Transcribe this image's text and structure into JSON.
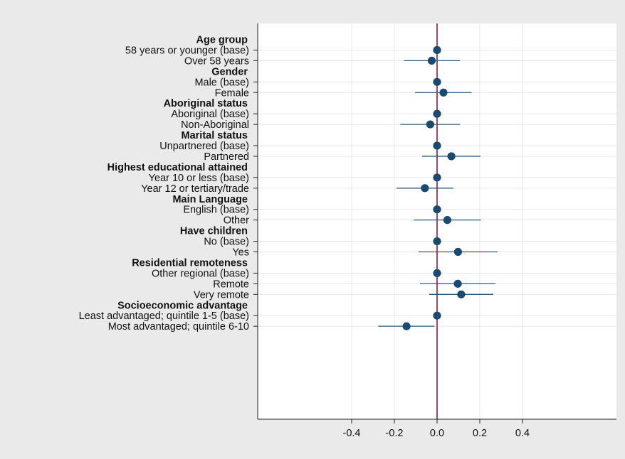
{
  "chart_data": {
    "type": "scatter",
    "subtype": "coefficient-plot",
    "title": "",
    "xlabel": "",
    "ylabel": "",
    "xlim": [
      -0.42,
      0.42
    ],
    "xticks": [
      -0.4,
      -0.2,
      0.0,
      0.2,
      0.4
    ],
    "xtick_labels": [
      "-0.4",
      "-0.2",
      "0.0",
      "0.2",
      "0.4"
    ],
    "reference_line_x": 0,
    "grid": true,
    "legend": "none",
    "colors": {
      "point": "#1a4a6e",
      "ci_line": "#2a5a80",
      "reference_line": "#8b1a3a",
      "plot_background": "#ffffff",
      "outer_background": "#eaeaea",
      "grid": "#e4e8ec"
    },
    "rows": [
      {
        "kind": "header",
        "label": "Age group"
      },
      {
        "kind": "term",
        "label": "58 years or younger (base)",
        "coef": 0.0,
        "ci_low": null,
        "ci_high": null
      },
      {
        "kind": "term",
        "label": "Over 58 years",
        "coef": -0.025,
        "ci_low": -0.155,
        "ci_high": 0.108
      },
      {
        "kind": "header",
        "label": "Gender"
      },
      {
        "kind": "term",
        "label": "Male (base)",
        "coef": 0.0,
        "ci_low": null,
        "ci_high": null
      },
      {
        "kind": "term",
        "label": "Female",
        "coef": 0.03,
        "ci_low": -0.103,
        "ci_high": 0.162
      },
      {
        "kind": "header",
        "label": "Aboriginal status"
      },
      {
        "kind": "term",
        "label": "Aboriginal (base)",
        "coef": 0.0,
        "ci_low": null,
        "ci_high": null
      },
      {
        "kind": "term",
        "label": "Non-Aboriginal",
        "coef": -0.032,
        "ci_low": -0.172,
        "ci_high": 0.108
      },
      {
        "kind": "header",
        "label": "Marital status"
      },
      {
        "kind": "term",
        "label": "Unpartnered (base)",
        "coef": 0.0,
        "ci_low": null,
        "ci_high": null
      },
      {
        "kind": "term",
        "label": "Partnered",
        "coef": 0.067,
        "ci_low": -0.07,
        "ci_high": 0.203
      },
      {
        "kind": "header",
        "label": "Highest educational attained"
      },
      {
        "kind": "term",
        "label": "Year 10 or less (base)",
        "coef": 0.0,
        "ci_low": null,
        "ci_high": null
      },
      {
        "kind": "term",
        "label": "Year 12 or tertiary/trade",
        "coef": -0.057,
        "ci_low": -0.19,
        "ci_high": 0.077
      },
      {
        "kind": "header",
        "label": "Main Language"
      },
      {
        "kind": "term",
        "label": "English (base)",
        "coef": 0.0,
        "ci_low": null,
        "ci_high": null
      },
      {
        "kind": "term",
        "label": "Other",
        "coef": 0.048,
        "ci_low": -0.11,
        "ci_high": 0.205
      },
      {
        "kind": "header",
        "label": "Have children"
      },
      {
        "kind": "term",
        "label": "No (base)",
        "coef": 0.0,
        "ci_low": null,
        "ci_high": null
      },
      {
        "kind": "term",
        "label": "Yes",
        "coef": 0.098,
        "ci_low": -0.087,
        "ci_high": 0.283
      },
      {
        "kind": "header",
        "label": "Residential remoteness"
      },
      {
        "kind": "term",
        "label": "Other regional (base)",
        "coef": 0.0,
        "ci_low": null,
        "ci_high": null
      },
      {
        "kind": "term",
        "label": "Remote",
        "coef": 0.097,
        "ci_low": -0.08,
        "ci_high": 0.273
      },
      {
        "kind": "term",
        "label": "Very remote",
        "coef": 0.113,
        "ci_low": -0.037,
        "ci_high": 0.263
      },
      {
        "kind": "header",
        "label": "Socioeconomic advantage"
      },
      {
        "kind": "term",
        "label": "Least advantaged; quintile 1-5 (base)",
        "coef": 0.0,
        "ci_low": null,
        "ci_high": null
      },
      {
        "kind": "term",
        "label": "Most advantaged; quintile 6-10",
        "coef": -0.143,
        "ci_low": -0.275,
        "ci_high": -0.012
      }
    ]
  }
}
